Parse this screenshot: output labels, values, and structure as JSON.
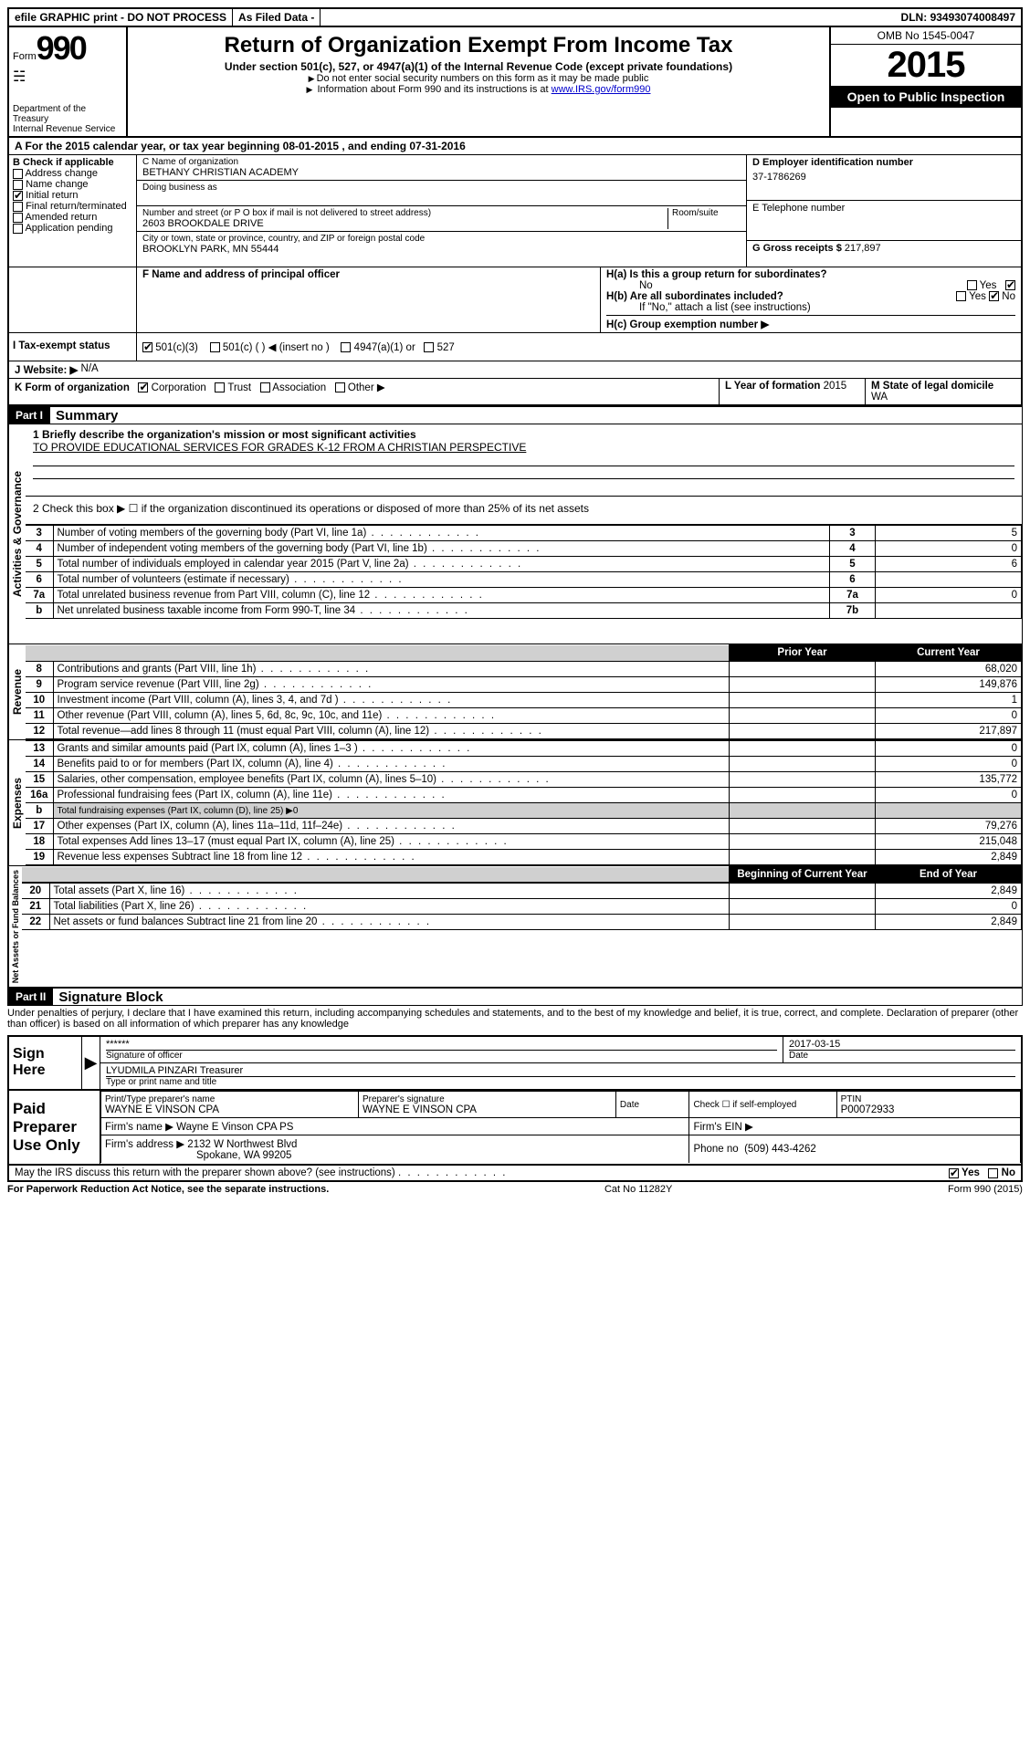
{
  "topbar": {
    "efile": "efile GRAPHIC print - DO NOT PROCESS",
    "asfiled": "As Filed Data -",
    "dln_label": "DLN:",
    "dln": "93493074008497"
  },
  "header": {
    "form_label": "Form",
    "form_no": "990",
    "dept": "Department of the Treasury",
    "irs": "Internal Revenue Service",
    "title": "Return of Organization Exempt From Income Tax",
    "sub1": "Under section 501(c), 527, or 4947(a)(1) of the Internal Revenue Code (except private foundations)",
    "sub2": "Do not enter social security numbers on this form as it may be made public",
    "sub3_pre": "Information about Form 990 and its instructions is at ",
    "sub3_link": "www.IRS.gov/form990",
    "omb": "OMB No 1545-0047",
    "year": "2015",
    "open": "Open to Public Inspection"
  },
  "lineA": "A  For the 2015 calendar year, or tax year beginning 08-01-2015    , and ending 07-31-2016",
  "B": {
    "label": "B Check if applicable",
    "addr": "Address change",
    "name": "Name change",
    "init": "Initial return",
    "final": "Final return/terminated",
    "amend": "Amended return",
    "app": "Application pending"
  },
  "C": {
    "name_lbl": "C Name of organization",
    "name": "BETHANY CHRISTIAN ACADEMY",
    "dba_lbl": "Doing business as",
    "dba": "",
    "street_lbl": "Number and street (or P O box if mail is not delivered to street address)",
    "room_lbl": "Room/suite",
    "street": "2603 BROOKDALE DRIVE",
    "city_lbl": "City or town, state or province, country, and ZIP or foreign postal code",
    "city": "BROOKLYN PARK, MN  55444"
  },
  "D": {
    "lbl": "D Employer identification number",
    "val": "37-1786269"
  },
  "E": {
    "lbl": "E Telephone number",
    "val": ""
  },
  "G": {
    "lbl": "G Gross receipts $",
    "val": "217,897"
  },
  "F": {
    "lbl": "F  Name and address of principal officer",
    "val": ""
  },
  "H": {
    "a_lbl": "H(a)  Is this a group return for subordinates?",
    "a_ans": "No",
    "yes": "Yes",
    "no": "No",
    "b_lbl": "H(b)  Are all subordinates included?",
    "b_note": "If \"No,\" attach a list  (see instructions)",
    "c_lbl": "H(c)  Group exemption number ▶"
  },
  "I": {
    "lbl": "I  Tax-exempt status",
    "o1": "501(c)(3)",
    "o2": "501(c) (  ) ◀ (insert no )",
    "o3": "4947(a)(1) or",
    "o4": "527"
  },
  "J": {
    "lbl": "J  Website: ▶",
    "val": "N/A"
  },
  "K": {
    "lbl": "K Form of organization",
    "corp": "Corporation",
    "trust": "Trust",
    "assoc": "Association",
    "other": "Other ▶"
  },
  "L": {
    "lbl": "L Year of formation",
    "val": "2015"
  },
  "M": {
    "lbl": "M State of legal domicile",
    "val": "WA"
  },
  "partI": {
    "hdr": "Part I",
    "title": "Summary"
  },
  "summary": {
    "l1_lbl": "1 Briefly describe the organization's mission or most significant activities",
    "l1_val": "TO PROVIDE EDUCATIONAL SERVICES FOR GRADES K-12 FROM A CHRISTIAN PERSPECTIVE",
    "l2": "2  Check this box ▶ ☐ if the organization discontinued its operations or disposed of more than 25% of its net assets",
    "rows_ag": [
      {
        "n": "3",
        "t": "Number of voting members of the governing body (Part VI, line 1a)",
        "k": "3",
        "v": "5"
      },
      {
        "n": "4",
        "t": "Number of independent voting members of the governing body (Part VI, line 1b)",
        "k": "4",
        "v": "0"
      },
      {
        "n": "5",
        "t": "Total number of individuals employed in calendar year 2015 (Part V, line 2a)",
        "k": "5",
        "v": "6"
      },
      {
        "n": "6",
        "t": "Total number of volunteers (estimate if necessary)",
        "k": "6",
        "v": ""
      },
      {
        "n": "7a",
        "t": "Total unrelated business revenue from Part VIII, column (C), line 12",
        "k": "7a",
        "v": "0"
      },
      {
        "n": "b",
        "t": "Net unrelated business taxable income from Form 990-T, line 34",
        "k": "7b",
        "v": ""
      }
    ],
    "prior_hdr": "Prior Year",
    "curr_hdr": "Current Year",
    "rows_rev": [
      {
        "n": "8",
        "t": "Contributions and grants (Part VIII, line 1h)",
        "p": "",
        "c": "68,020"
      },
      {
        "n": "9",
        "t": "Program service revenue (Part VIII, line 2g)",
        "p": "",
        "c": "149,876"
      },
      {
        "n": "10",
        "t": "Investment income (Part VIII, column (A), lines 3, 4, and 7d )",
        "p": "",
        "c": "1"
      },
      {
        "n": "11",
        "t": "Other revenue (Part VIII, column (A), lines 5, 6d, 8c, 9c, 10c, and 11e)",
        "p": "",
        "c": "0"
      },
      {
        "n": "12",
        "t": "Total revenue—add lines 8 through 11 (must equal Part VIII, column (A), line 12)",
        "p": "",
        "c": "217,897"
      }
    ],
    "rows_exp": [
      {
        "n": "13",
        "t": "Grants and similar amounts paid (Part IX, column (A), lines 1–3 )",
        "p": "",
        "c": "0"
      },
      {
        "n": "14",
        "t": "Benefits paid to or for members (Part IX, column (A), line 4)",
        "p": "",
        "c": "0"
      },
      {
        "n": "15",
        "t": "Salaries, other compensation, employee benefits (Part IX, column (A), lines 5–10)",
        "p": "",
        "c": "135,772"
      },
      {
        "n": "16a",
        "t": "Professional fundraising fees (Part IX, column (A), line 11e)",
        "p": "",
        "c": "0"
      },
      {
        "n": "b",
        "t": "Total fundraising expenses (Part IX, column (D), line 25) ▶0",
        "p": "—",
        "c": "—",
        "gray": true
      },
      {
        "n": "17",
        "t": "Other expenses (Part IX, column (A), lines 11a–11d, 11f–24e)",
        "p": "",
        "c": "79,276"
      },
      {
        "n": "18",
        "t": "Total expenses Add lines 13–17 (must equal Part IX, column (A), line 25)",
        "p": "",
        "c": "215,048"
      },
      {
        "n": "19",
        "t": "Revenue less expenses Subtract line 18 from line 12",
        "p": "",
        "c": "2,849"
      }
    ],
    "beg_hdr": "Beginning of Current Year",
    "end_hdr": "End of Year",
    "rows_na": [
      {
        "n": "20",
        "t": "Total assets (Part X, line 16)",
        "p": "",
        "c": "2,849"
      },
      {
        "n": "21",
        "t": "Total liabilities (Part X, line 26)",
        "p": "",
        "c": "0"
      },
      {
        "n": "22",
        "t": "Net assets or fund balances Subtract line 21 from line 20",
        "p": "",
        "c": "2,849"
      }
    ]
  },
  "vtabs": {
    "ag": "Activities & Governance",
    "rev": "Revenue",
    "exp": "Expenses",
    "na": "Net Assets or Fund Balances"
  },
  "partII": {
    "hdr": "Part II",
    "title": "Signature Block"
  },
  "perjury": "Under penalties of perjury, I declare that I have examined this return, including accompanying schedules and statements, and to the best of my knowledge and belief, it is true, correct, and complete. Declaration of preparer (other than officer) is based on all information of which preparer has any knowledge",
  "sign": {
    "here": "Sign Here",
    "stars": "******",
    "sig_lbl": "Signature of officer",
    "date_lbl": "Date",
    "date": "2017-03-15",
    "name": "LYUDMILA PINZARI Treasurer",
    "name_lbl": "Type or print name and title"
  },
  "paid": {
    "hdr": "Paid Preparer Use Only",
    "pt_lbl": "Print/Type preparer's name",
    "pt_val": "WAYNE E VINSON CPA",
    "ps_lbl": "Preparer's signature",
    "ps_val": "WAYNE E VINSON CPA",
    "dt_lbl": "Date",
    "chk_lbl": "Check ☐ if self-employed",
    "ptin_lbl": "PTIN",
    "ptin": "P00072933",
    "firm_lbl": "Firm's name    ▶",
    "firm": "Wayne E Vinson CPA PS",
    "ein_lbl": "Firm's EIN ▶",
    "addr_lbl": "Firm's address ▶",
    "addr1": "2132 W Northwest Blvd",
    "addr2": "Spokane, WA  99205",
    "phone_lbl": "Phone no",
    "phone": "(509) 443-4262"
  },
  "may": {
    "txt": "May the IRS discuss this return with the preparer shown above? (see instructions)",
    "yes": "Yes",
    "no": "No"
  },
  "footer": {
    "l": "For Paperwork Reduction Act Notice, see the separate instructions.",
    "m": "Cat No 11282Y",
    "r": "Form 990 (2015)"
  },
  "colors": {
    "black": "#000000",
    "white": "#ffffff",
    "link": "#0000cc",
    "gray": "#d0d0d0"
  }
}
